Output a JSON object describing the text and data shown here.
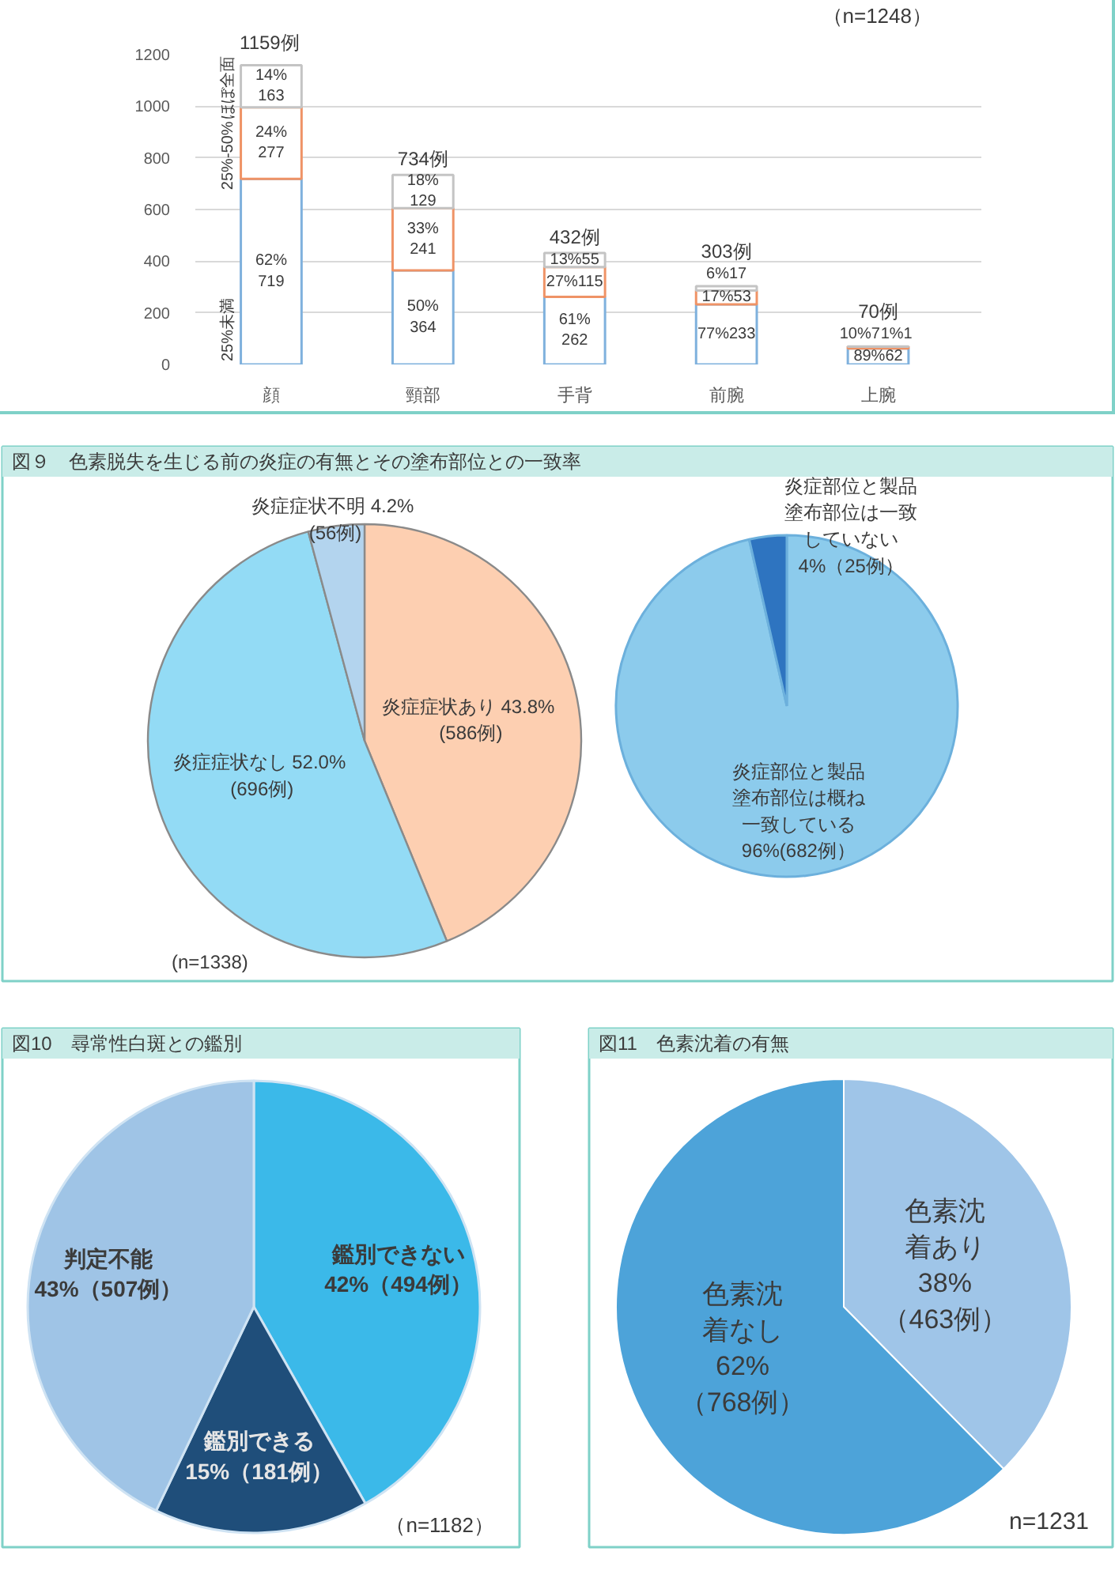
{
  "chart_data": [
    {
      "type": "bar",
      "stacked": true,
      "categories": [
        "顔",
        "頸部",
        "手背",
        "前腕",
        "上腕"
      ],
      "series": [
        {
          "name": "25%未満",
          "color": "#7fb1dd",
          "values": [
            719,
            364,
            262,
            233,
            62
          ],
          "value_labels": [
            "62%\n719",
            "50%\n364",
            "61%\n262",
            "77%233",
            "89%62"
          ]
        },
        {
          "name": "25%-50%",
          "color": "#ef9366",
          "values": [
            277,
            241,
            115,
            53,
            7
          ],
          "value_labels": [
            "24%\n277",
            "33%\n241",
            "27%115",
            "17%53",
            "10%7"
          ]
        },
        {
          "name": "ほぼ全面",
          "color": "#c4c4c4",
          "values": [
            163,
            129,
            55,
            17,
            1
          ],
          "value_labels": [
            "14%\n163",
            "18%\n129",
            "13%55",
            "6%17",
            "1%1"
          ]
        }
      ],
      "totals": [
        "1159例",
        "734例",
        "432例",
        "303例",
        "70例"
      ],
      "ylim": [
        0,
        1200
      ],
      "yticks": [
        0,
        200,
        400,
        600,
        800,
        1000,
        1200
      ],
      "grid": "y",
      "annotations": [
        "（n=1248）"
      ]
    },
    {
      "type": "pie",
      "title": "図９　色素脱失を生じる前の炎症の有無とその塗布部位との一致率",
      "categories": [
        "炎症症状あり",
        "炎症症状なし",
        "炎症症状不明"
      ],
      "values": [
        586,
        696,
        56
      ],
      "colors": [
        "#fdcfb1",
        "#93dbf5",
        "#b3d4ee"
      ],
      "value_labels": [
        "43.8%\n(586例)",
        "52.0%\n(696例)",
        "4.2%\n(56例)"
      ],
      "annotations": [
        "(n=1338)"
      ]
    },
    {
      "type": "pie",
      "categories": [
        "炎症部位と製品塗布部位は概ね一致している",
        "炎症部位と製品塗布部位は一致していない"
      ],
      "values": [
        682,
        25
      ],
      "colors": [
        "#8ccbec",
        "#2e74c0"
      ],
      "value_labels": [
        "96%(682例）",
        "4%（25例）"
      ]
    },
    {
      "type": "pie",
      "title": "図10　尋常性白斑との鑑別",
      "categories": [
        "鑑別できない",
        "鑑別できる",
        "判定不能"
      ],
      "values": [
        494,
        181,
        507
      ],
      "colors": [
        "#3bb9e9",
        "#1f4e7a",
        "#9fc4e6"
      ],
      "value_labels": [
        "42%（494例）",
        "15%（181例）",
        "43%（507例）"
      ],
      "annotations": [
        "（n=1182）"
      ]
    },
    {
      "type": "pie",
      "title": "図11　色素沈着の有無",
      "categories": [
        "色素沈着あり",
        "色素沈着なし"
      ],
      "values": [
        463,
        768
      ],
      "colors": [
        "#9fc5e8",
        "#4da3d9"
      ],
      "value_labels": [
        "38%\n（463例）",
        "62%\n（768例）"
      ],
      "annotations": [
        "n=1231"
      ]
    }
  ]
}
